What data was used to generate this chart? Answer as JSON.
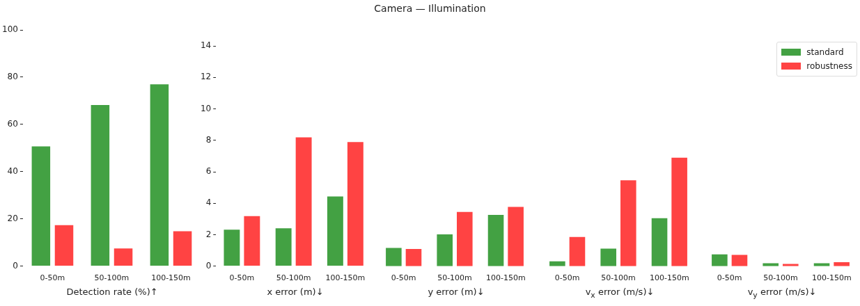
{
  "chart_data": [
    {
      "type": "bar",
      "xlabel": "Detection rate (%)↑",
      "categories": [
        "0-50m",
        "50-100m",
        "100-150m"
      ],
      "ylim": [
        0,
        100
      ],
      "yticks": [
        0,
        20,
        40,
        60,
        80,
        100
      ],
      "series": [
        {
          "color": "#43a143",
          "values": [
            51.0,
            68.5,
            77.3
          ]
        },
        {
          "color": "#ff4343",
          "values": [
            17.7,
            7.8,
            15.1
          ]
        }
      ]
    },
    {
      "type": "bar",
      "xlabel": "x error (m)↓",
      "categories": [
        "0-50m",
        "50-100m",
        "100-150m"
      ],
      "ylim": [
        0,
        14
      ],
      "yticks": [
        0,
        2,
        4,
        6,
        8,
        10,
        12,
        14
      ],
      "series": [
        {
          "color": "#43a143",
          "values": [
            2.37,
            2.45,
            4.48
          ]
        },
        {
          "color": "#ff4343",
          "values": [
            3.23,
            8.23,
            7.93
          ]
        }
      ]
    },
    {
      "type": "bar",
      "title": "Camera — Illumination",
      "xlabel": "y error (m)↓",
      "categories": [
        "0-50m",
        "50-100m",
        "100-150m"
      ],
      "ylim": [
        0,
        14
      ],
      "tick_labels": "x",
      "series": [
        {
          "color": "#43a143",
          "values": [
            1.21,
            2.07,
            3.31
          ]
        },
        {
          "color": "#ff4343",
          "values": [
            1.14,
            3.49,
            3.81
          ]
        }
      ]
    },
    {
      "type": "bar",
      "xlabel": "v$_{x}$ error (m/s)↓",
      "categories": [
        "0-50m",
        "50-100m",
        "100-150m"
      ],
      "ylim": [
        0,
        14
      ],
      "tick_labels": "x",
      "series": [
        {
          "color": "#43a143",
          "values": [
            0.36,
            1.16,
            3.1
          ]
        },
        {
          "color": "#ff4343",
          "values": [
            1.9,
            5.5,
            6.94
          ]
        }
      ]
    },
    {
      "type": "bar",
      "xlabel": "v$_{y}$ error (m/s)↓",
      "categories": [
        "0-50m",
        "50-100m",
        "100-150m"
      ],
      "ylim": [
        0,
        14
      ],
      "tick_labels": "x",
      "legend": "top right",
      "series": [
        {
          "name": "standard",
          "color": "#43a143",
          "values": [
            0.8,
            0.23,
            0.23
          ]
        },
        {
          "name": "robustness",
          "color": "#ff4343",
          "values": [
            0.76,
            0.19,
            0.3
          ]
        }
      ]
    }
  ]
}
